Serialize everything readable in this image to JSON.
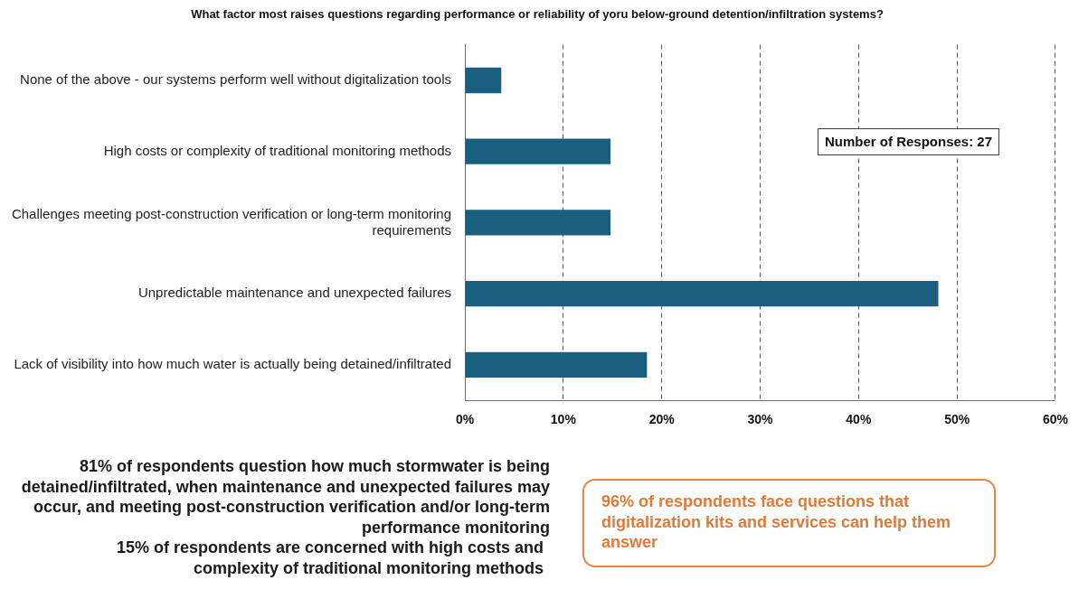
{
  "chart_data": {
    "type": "bar",
    "orientation": "horizontal",
    "title": "What factor most raises questions regarding performance or reliability of yoru below-ground detention/infiltration systems?",
    "categories": [
      "None of the above - our systems perform well without digitalization tools",
      "High costs or complexity of traditional monitoring methods",
      "Challenges meeting post-construction verification or long-term monitoring requirements",
      "Unpredictable maintenance and unexpected failures",
      "Lack of visibility into how much water is actually being detained/infiltrated"
    ],
    "values": [
      3.7,
      14.8,
      14.8,
      48.1,
      18.5
    ],
    "color": "#1a5e80",
    "xlim": [
      0,
      60
    ],
    "xticks": [
      {
        "value": 0,
        "label": "0%"
      },
      {
        "value": 10,
        "label": "10%"
      },
      {
        "value": 20,
        "label": "20%"
      },
      {
        "value": 30,
        "label": "30%"
      },
      {
        "value": 40,
        "label": "40%"
      },
      {
        "value": 50,
        "label": "50%"
      },
      {
        "value": 60,
        "label": "60%"
      }
    ],
    "grid": "x",
    "annotations": [
      "Number of Responses: 27",
      "81% of respondents question how much stormwater is being detained/infiltrated, when maintenance and unexpected failures may occur, and meeting post-construction verification and/or long-term performance monitoring",
      "15% of respondents are concerned with high costs and complexity of traditional monitoring methods",
      "96% of respondents face questions that digitalization kits and services can help them answer"
    ]
  }
}
